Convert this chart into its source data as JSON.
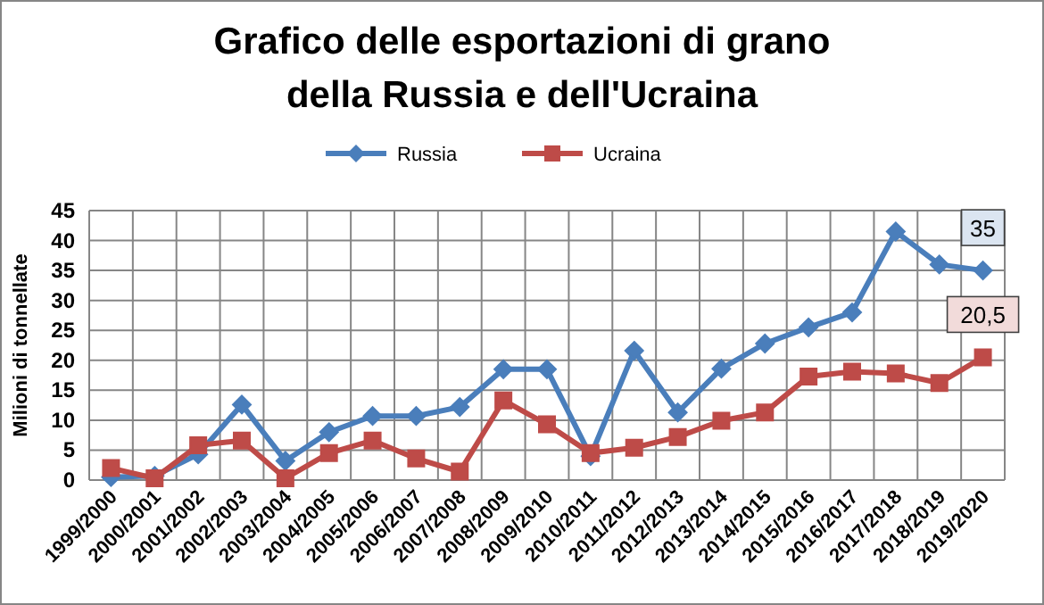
{
  "chart_data": {
    "type": "line",
    "title": "Grafico delle esportazioni di grano della Russia e dell'Ucraina",
    "ylabel": "Milioni di tonnellate",
    "categories": [
      "1999/2000",
      "2000/2001",
      "2001/2002",
      "2002/2003",
      "2003/2004",
      "2004/2005",
      "2005/2006",
      "2006/2007",
      "2007/2008",
      "2008/2009",
      "2009/2010",
      "2010/2011",
      "2011/2012",
      "2012/2013",
      "2013/2014",
      "2014/2015",
      "2015/2016",
      "2016/2017",
      "2017/2018",
      "2018/2019",
      "2019/2020"
    ],
    "series": [
      {
        "name": "Russia",
        "color": "#4a7ebb",
        "marker": "diamond",
        "values": [
          0.5,
          0.7,
          4.3,
          12.6,
          3.2,
          8,
          10.7,
          10.7,
          12.2,
          18.5,
          18.5,
          4,
          21.6,
          11.3,
          18.6,
          22.8,
          25.5,
          28,
          41.5,
          36,
          35
        ],
        "value_labels": [
          null,
          null,
          null,
          null,
          null,
          null,
          null,
          null,
          null,
          null,
          null,
          null,
          null,
          null,
          null,
          null,
          null,
          null,
          null,
          null,
          "35"
        ]
      },
      {
        "name": "Ucraina",
        "color": "#be4b48",
        "marker": "square",
        "values": [
          2,
          0.3,
          5.8,
          6.6,
          0.3,
          4.5,
          6.6,
          3.6,
          1.4,
          13.3,
          9.3,
          4.5,
          5.4,
          7.2,
          9.9,
          11.3,
          17.3,
          18.1,
          17.8,
          16.2,
          20.5
        ],
        "value_labels": [
          null,
          null,
          null,
          null,
          null,
          null,
          null,
          null,
          null,
          null,
          null,
          null,
          null,
          null,
          null,
          null,
          null,
          null,
          null,
          null,
          "20,5"
        ]
      }
    ],
    "ylim": [
      0,
      45
    ],
    "yticks": [
      0,
      5,
      10,
      15,
      20,
      25,
      30,
      35,
      40,
      45
    ],
    "grid": true,
    "legend": "top"
  }
}
